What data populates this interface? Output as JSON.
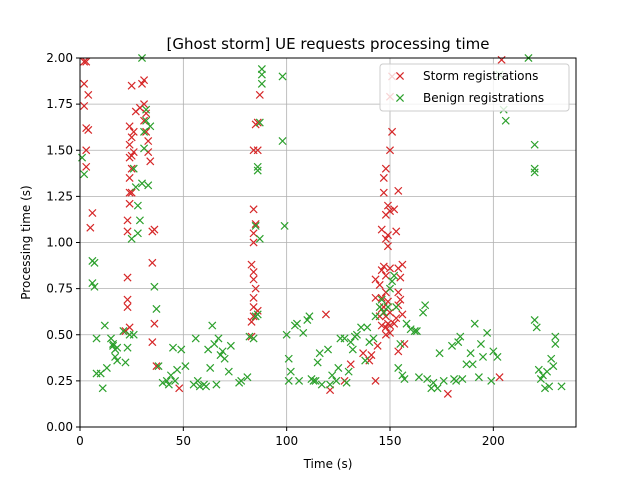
{
  "chart_data": {
    "type": "scatter",
    "title": "[Ghost storm] UE requests processing time",
    "xlabel": "Time (s)",
    "ylabel": "Processing time (s)",
    "xlim": [
      0,
      240
    ],
    "ylim": [
      0,
      2.0
    ],
    "x_ticks": [
      0,
      50,
      100,
      150,
      200
    ],
    "y_ticks": [
      0.0,
      0.25,
      0.5,
      0.75,
      1.0,
      1.25,
      1.5,
      1.75,
      2.0
    ],
    "x_tick_labels": [
      "0",
      "50",
      "100",
      "150",
      "200"
    ],
    "y_tick_labels": [
      "0.00",
      "0.25",
      "0.50",
      "0.75",
      "1.00",
      "1.25",
      "1.50",
      "1.75",
      "2.00"
    ],
    "grid": true,
    "legend_position": "top-right",
    "marker": "x",
    "series": [
      {
        "name": "Storm registrations",
        "color": "#d62728",
        "points": [
          [
            2,
            1.98
          ],
          [
            3,
            1.98
          ],
          [
            2,
            1.86
          ],
          [
            4,
            1.8
          ],
          [
            2,
            1.74
          ],
          [
            3,
            1.62
          ],
          [
            4,
            1.61
          ],
          [
            3,
            1.5
          ],
          [
            3,
            1.41
          ],
          [
            6,
            1.16
          ],
          [
            5,
            1.08
          ],
          [
            23,
            1.06
          ],
          [
            23,
            1.12
          ],
          [
            24,
            1.21
          ],
          [
            24,
            1.27
          ],
          [
            25,
            1.27
          ],
          [
            24,
            1.35
          ],
          [
            25,
            1.4
          ],
          [
            24,
            1.46
          ],
          [
            25,
            1.47
          ],
          [
            26,
            1.49
          ],
          [
            24,
            1.53
          ],
          [
            25,
            1.57
          ],
          [
            26,
            1.6
          ],
          [
            24,
            1.63
          ],
          [
            27,
            1.71
          ],
          [
            29,
            1.73
          ],
          [
            30,
            1.86
          ],
          [
            31,
            1.88
          ],
          [
            25,
            1.85
          ],
          [
            31,
            1.75
          ],
          [
            32,
            1.7
          ],
          [
            31,
            1.66
          ],
          [
            32,
            1.6
          ],
          [
            33,
            1.55
          ],
          [
            33,
            1.49
          ],
          [
            34,
            1.44
          ],
          [
            36,
            1.07
          ],
          [
            35,
            1.06
          ],
          [
            35,
            0.89
          ],
          [
            36,
            0.56
          ],
          [
            35,
            0.46
          ],
          [
            23,
            0.81
          ],
          [
            23,
            0.69
          ],
          [
            23,
            0.65
          ],
          [
            24,
            0.54
          ],
          [
            22,
            0.52
          ],
          [
            37,
            0.33
          ],
          [
            48,
            0.21
          ],
          [
            84,
            1.5
          ],
          [
            84,
            1.18
          ],
          [
            85,
            1.1
          ],
          [
            84,
            1.05
          ],
          [
            84,
            1.0
          ],
          [
            83,
            0.88
          ],
          [
            84,
            0.84
          ],
          [
            84,
            0.8
          ],
          [
            85,
            0.75
          ],
          [
            84,
            0.7
          ],
          [
            84,
            0.65
          ],
          [
            84,
            0.6
          ],
          [
            83,
            0.57
          ],
          [
            85,
            1.64
          ],
          [
            86,
            1.65
          ],
          [
            86,
            1.5
          ],
          [
            87,
            1.8
          ],
          [
            86,
            0.63
          ],
          [
            83,
            0.49
          ],
          [
            148,
            0.54
          ],
          [
            150,
            0.51
          ],
          [
            148,
            0.5
          ],
          [
            146,
            0.55
          ],
          [
            149,
            0.56
          ],
          [
            148,
            0.6
          ],
          [
            150,
            0.62
          ],
          [
            147,
            0.65
          ],
          [
            149,
            0.68
          ],
          [
            146,
            0.7
          ],
          [
            148,
            0.73
          ],
          [
            145,
            0.77
          ],
          [
            148,
            0.82
          ],
          [
            143,
            0.8
          ],
          [
            146,
            0.85
          ],
          [
            147,
            0.87
          ],
          [
            150,
            0.86
          ],
          [
            149,
            0.98
          ],
          [
            148,
            1.02
          ],
          [
            149,
            1.04
          ],
          [
            146,
            1.07
          ],
          [
            148,
            1.15
          ],
          [
            147,
            1.27
          ],
          [
            149,
            1.2
          ],
          [
            150,
            1.17
          ],
          [
            153,
            1.06
          ],
          [
            152,
            1.18
          ],
          [
            154,
            1.28
          ],
          [
            147,
            1.35
          ],
          [
            148,
            1.4
          ],
          [
            150,
            1.5
          ],
          [
            151,
            1.6
          ],
          [
            150,
            1.79
          ],
          [
            151,
            1.9
          ],
          [
            154,
            0.86
          ],
          [
            156,
            0.88
          ],
          [
            155,
            0.81
          ],
          [
            154,
            0.73
          ],
          [
            155,
            0.69
          ],
          [
            154,
            0.66
          ],
          [
            156,
            0.61
          ],
          [
            153,
            0.59
          ],
          [
            157,
            0.45
          ],
          [
            154,
            0.41
          ],
          [
            152,
            0.56
          ],
          [
            150,
            0.55
          ],
          [
            146,
            0.64
          ],
          [
            143,
            0.7
          ],
          [
            145,
            0.6
          ],
          [
            144,
            0.44
          ],
          [
            141,
            0.39
          ],
          [
            140,
            0.36
          ],
          [
            143,
            0.25
          ],
          [
            137,
            0.4
          ],
          [
            131,
            0.34
          ],
          [
            128,
            0.25
          ],
          [
            121,
            0.2
          ],
          [
            119,
            0.61
          ],
          [
            178,
            0.18
          ],
          [
            203,
            0.27
          ],
          [
            204,
            1.99
          ]
        ]
      },
      {
        "name": "Benign registrations",
        "color": "#2ca02c",
        "points": [
          [
            1,
            1.46
          ],
          [
            2,
            1.37
          ],
          [
            6,
            0.9
          ],
          [
            7,
            0.89
          ],
          [
            6,
            0.78
          ],
          [
            7,
            0.76
          ],
          [
            8,
            0.48
          ],
          [
            8,
            0.29
          ],
          [
            10,
            0.29
          ],
          [
            11,
            0.21
          ],
          [
            12,
            0.55
          ],
          [
            13,
            0.32
          ],
          [
            15,
            0.48
          ],
          [
            16,
            0.45
          ],
          [
            16,
            0.44
          ],
          [
            17,
            0.42
          ],
          [
            17,
            0.38
          ],
          [
            18,
            0.43
          ],
          [
            18,
            0.36
          ],
          [
            21,
            0.52
          ],
          [
            22,
            0.35
          ],
          [
            23,
            0.43
          ],
          [
            24,
            0.5
          ],
          [
            25,
            1.02
          ],
          [
            26,
            0.5
          ],
          [
            26,
            1.4
          ],
          [
            27,
            1.3
          ],
          [
            28,
            1.2
          ],
          [
            28,
            1.05
          ],
          [
            29,
            1.12
          ],
          [
            30,
            1.32
          ],
          [
            31,
            1.51
          ],
          [
            31,
            1.6
          ],
          [
            32,
            1.66
          ],
          [
            32,
            1.72
          ],
          [
            33,
            1.31
          ],
          [
            34,
            1.63
          ],
          [
            30,
            2.0
          ],
          [
            36,
            0.76
          ],
          [
            37,
            0.64
          ],
          [
            38,
            0.33
          ],
          [
            40,
            0.24
          ],
          [
            42,
            0.25
          ],
          [
            43,
            0.23
          ],
          [
            44,
            0.28
          ],
          [
            45,
            0.43
          ],
          [
            46,
            0.25
          ],
          [
            47,
            0.31
          ],
          [
            49,
            0.42
          ],
          [
            51,
            0.33
          ],
          [
            55,
            0.23
          ],
          [
            56,
            0.48
          ],
          [
            57,
            0.25
          ],
          [
            58,
            0.22
          ],
          [
            60,
            0.23
          ],
          [
            61,
            0.22
          ],
          [
            62,
            0.42
          ],
          [
            63,
            0.32
          ],
          [
            64,
            0.55
          ],
          [
            65,
            0.45
          ],
          [
            66,
            0.23
          ],
          [
            67,
            0.48
          ],
          [
            68,
            0.39
          ],
          [
            69,
            0.41
          ],
          [
            70,
            0.37
          ],
          [
            72,
            0.3
          ],
          [
            73,
            0.44
          ],
          [
            77,
            0.24
          ],
          [
            78,
            0.25
          ],
          [
            81,
            0.27
          ],
          [
            82,
            0.49
          ],
          [
            84,
            0.48
          ],
          [
            85,
            1.09
          ],
          [
            86,
            1.41
          ],
          [
            86,
            1.39
          ],
          [
            87,
            1.02
          ],
          [
            87,
            1.65
          ],
          [
            88,
            1.94
          ],
          [
            88,
            1.91
          ],
          [
            88,
            1.86
          ],
          [
            85,
            0.6
          ],
          [
            86,
            0.61
          ],
          [
            98,
            1.9
          ],
          [
            98,
            1.55
          ],
          [
            99,
            1.09
          ],
          [
            100,
            0.5
          ],
          [
            101,
            0.37
          ],
          [
            102,
            0.3
          ],
          [
            101,
            0.25
          ],
          [
            104,
            0.55
          ],
          [
            105,
            0.56
          ],
          [
            106,
            0.25
          ],
          [
            108,
            0.51
          ],
          [
            110,
            0.58
          ],
          [
            111,
            0.6
          ],
          [
            112,
            0.26
          ],
          [
            113,
            0.25
          ],
          [
            114,
            0.25
          ],
          [
            115,
            0.35
          ],
          [
            116,
            0.4
          ],
          [
            117,
            0.23
          ],
          [
            120,
            0.42
          ],
          [
            121,
            0.23
          ],
          [
            122,
            0.28
          ],
          [
            124,
            0.25
          ],
          [
            125,
            0.32
          ],
          [
            126,
            0.48
          ],
          [
            128,
            0.48
          ],
          [
            129,
            0.24
          ],
          [
            130,
            0.3
          ],
          [
            131,
            0.46
          ],
          [
            132,
            0.42
          ],
          [
            133,
            0.49
          ],
          [
            134,
            0.5
          ],
          [
            136,
            0.54
          ],
          [
            138,
            0.36
          ],
          [
            139,
            0.54
          ],
          [
            140,
            0.46
          ],
          [
            142,
            0.48
          ],
          [
            143,
            0.6
          ],
          [
            145,
            0.65
          ],
          [
            146,
            0.69
          ],
          [
            147,
            0.62
          ],
          [
            149,
            0.65
          ],
          [
            150,
            0.75
          ],
          [
            151,
            0.79
          ],
          [
            152,
            0.82
          ],
          [
            153,
            0.65
          ],
          [
            154,
            0.32
          ],
          [
            155,
            0.45
          ],
          [
            156,
            0.28
          ],
          [
            157,
            0.26
          ],
          [
            158,
            0.56
          ],
          [
            160,
            0.53
          ],
          [
            162,
            0.52
          ],
          [
            163,
            0.52
          ],
          [
            164,
            0.27
          ],
          [
            166,
            0.62
          ],
          [
            167,
            0.66
          ],
          [
            168,
            0.26
          ],
          [
            170,
            0.21
          ],
          [
            171,
            0.24
          ],
          [
            173,
            0.21
          ],
          [
            174,
            0.4
          ],
          [
            176,
            0.25
          ],
          [
            180,
            0.44
          ],
          [
            181,
            0.26
          ],
          [
            182,
            0.25
          ],
          [
            183,
            0.46
          ],
          [
            184,
            0.49
          ],
          [
            185,
            0.26
          ],
          [
            187,
            0.34
          ],
          [
            189,
            0.4
          ],
          [
            190,
            0.34
          ],
          [
            191,
            0.56
          ],
          [
            193,
            0.27
          ],
          [
            194,
            0.45
          ],
          [
            195,
            0.38
          ],
          [
            197,
            0.51
          ],
          [
            199,
            0.25
          ],
          [
            200,
            0.41
          ],
          [
            202,
            0.38
          ],
          [
            203,
            1.91
          ],
          [
            205,
            1.72
          ],
          [
            206,
            1.66
          ],
          [
            217,
            2.0
          ],
          [
            220,
            1.4
          ],
          [
            220,
            1.38
          ],
          [
            220,
            1.53
          ],
          [
            220,
            0.58
          ],
          [
            221,
            0.54
          ],
          [
            222,
            0.31
          ],
          [
            223,
            0.26
          ],
          [
            224,
            0.28
          ],
          [
            225,
            0.21
          ],
          [
            226,
            0.3
          ],
          [
            227,
            0.22
          ],
          [
            228,
            0.37
          ],
          [
            229,
            0.33
          ],
          [
            230,
            0.49
          ],
          [
            230,
            0.45
          ],
          [
            233,
            0.22
          ]
        ]
      }
    ]
  }
}
